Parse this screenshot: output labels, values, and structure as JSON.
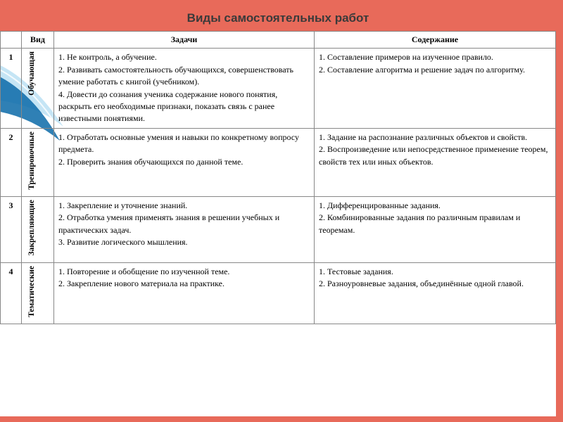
{
  "title": "Виды самостоятельных работ",
  "colors": {
    "accent": "#e86a5a",
    "border": "#888888",
    "text": "#1a1a1a",
    "swoosh_light": "#bfe2f4",
    "swoosh_dark": "#0b6aa8"
  },
  "table": {
    "header": {
      "num": "",
      "kind": "Вид",
      "tasks": "Задачи",
      "content": "Содержание"
    },
    "rows": [
      {
        "num": "1",
        "kind": "Обучающая",
        "tasks": "1. Не контроль, а обучение.\n2. Развивать самостоятельность обучающихся, совершенствовать умение работать с книгой (учебником).\n4. Довести до сознания ученика содержание нового понятия, раскрыть его необходимые признаки, показать связь с ранее известными понятиями.",
        "content": "1. Составление примеров на изученное правило.\n2. Составление алгоритма и решение задач по алгоритму."
      },
      {
        "num": "2",
        "kind": "Тренировочные",
        "tasks": "1. Отработать основные умения и навыки по конкретному вопросу предмета.\n2. Проверить знания обучающихся по данной теме.",
        "content": "1. Задание на распознание различных объектов и свойств.\n2. Воспроизведение или непосредственное применение теорем, свойств тех или иных объектов."
      },
      {
        "num": "3",
        "kind": "Закрепляющие",
        "tasks": "1. Закрепление и уточнение знаний.\n2. Отработка умения применять знания в решении учебных и практических задач.\n3. Развитие логического мышления.",
        "content": "1. Дифференцированные задания.\n2. Комбинированные задания по различным правилам и теоремам."
      },
      {
        "num": "4",
        "kind": "Тематические",
        "tasks": "1. Повторение и обобщение по изученной теме.\n2. Закрепление нового материала на практике.",
        "content": "1. Тестовые задания.\n2. Разноуровневые задания, объединённые одной главой."
      }
    ]
  }
}
